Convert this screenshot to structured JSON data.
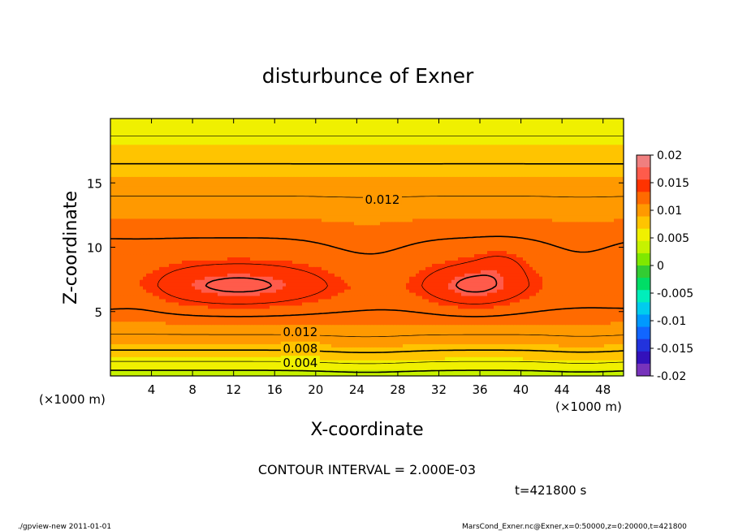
{
  "chart_data": {
    "type": "heatmap",
    "subtype": "filled-contour",
    "title": "disturbunce of Exner",
    "xlabel": "X-coordinate",
    "ylabel": "Z-coordinate",
    "x_unit": "(×1000 m)",
    "y_unit": "(×1000 m)",
    "xlim": [
      0,
      50
    ],
    "ylim": [
      0,
      20
    ],
    "x_ticks": [
      4,
      8,
      12,
      16,
      20,
      24,
      28,
      32,
      36,
      40,
      44,
      48
    ],
    "y_ticks": [
      5,
      10,
      15
    ],
    "grid": false,
    "colorbar": {
      "placement": "right",
      "range": [
        -0.02,
        0.02
      ],
      "tick_labels": [
        "0.02",
        "0.015",
        "0.01",
        "0.005",
        "0",
        "-0.005",
        "-0.01",
        "-0.015",
        "-0.02"
      ],
      "colors": [
        "#f07f7f",
        "#ff5b4b",
        "#ff3300",
        "#ff6a00",
        "#ff9900",
        "#ffc400",
        "#f0f000",
        "#c6f200",
        "#7fe800",
        "#33cc33",
        "#00dd66",
        "#00eebb",
        "#00ccee",
        "#0099ff",
        "#1166ff",
        "#2233dd",
        "#3311bb",
        "#7733bb"
      ]
    },
    "contour_interval_text": "CONTOUR INTERVAL = 2.000E-03",
    "contour_labels": [
      "0.012",
      "0.012",
      "0.008",
      "0.004"
    ],
    "contour_levels": [
      0.002,
      0.004,
      0.006,
      0.008,
      0.01,
      0.012,
      0.014,
      0.016
    ],
    "time_text": "t=421800 s",
    "field_max_approx": 0.0165,
    "field_min_approx": 0.0015
  },
  "footer": {
    "left": "./gpview-new   2011-01-01",
    "right": "MarsCond_Exner.nc@Exner,x=0:50000,z=0:20000,t=421800"
  }
}
